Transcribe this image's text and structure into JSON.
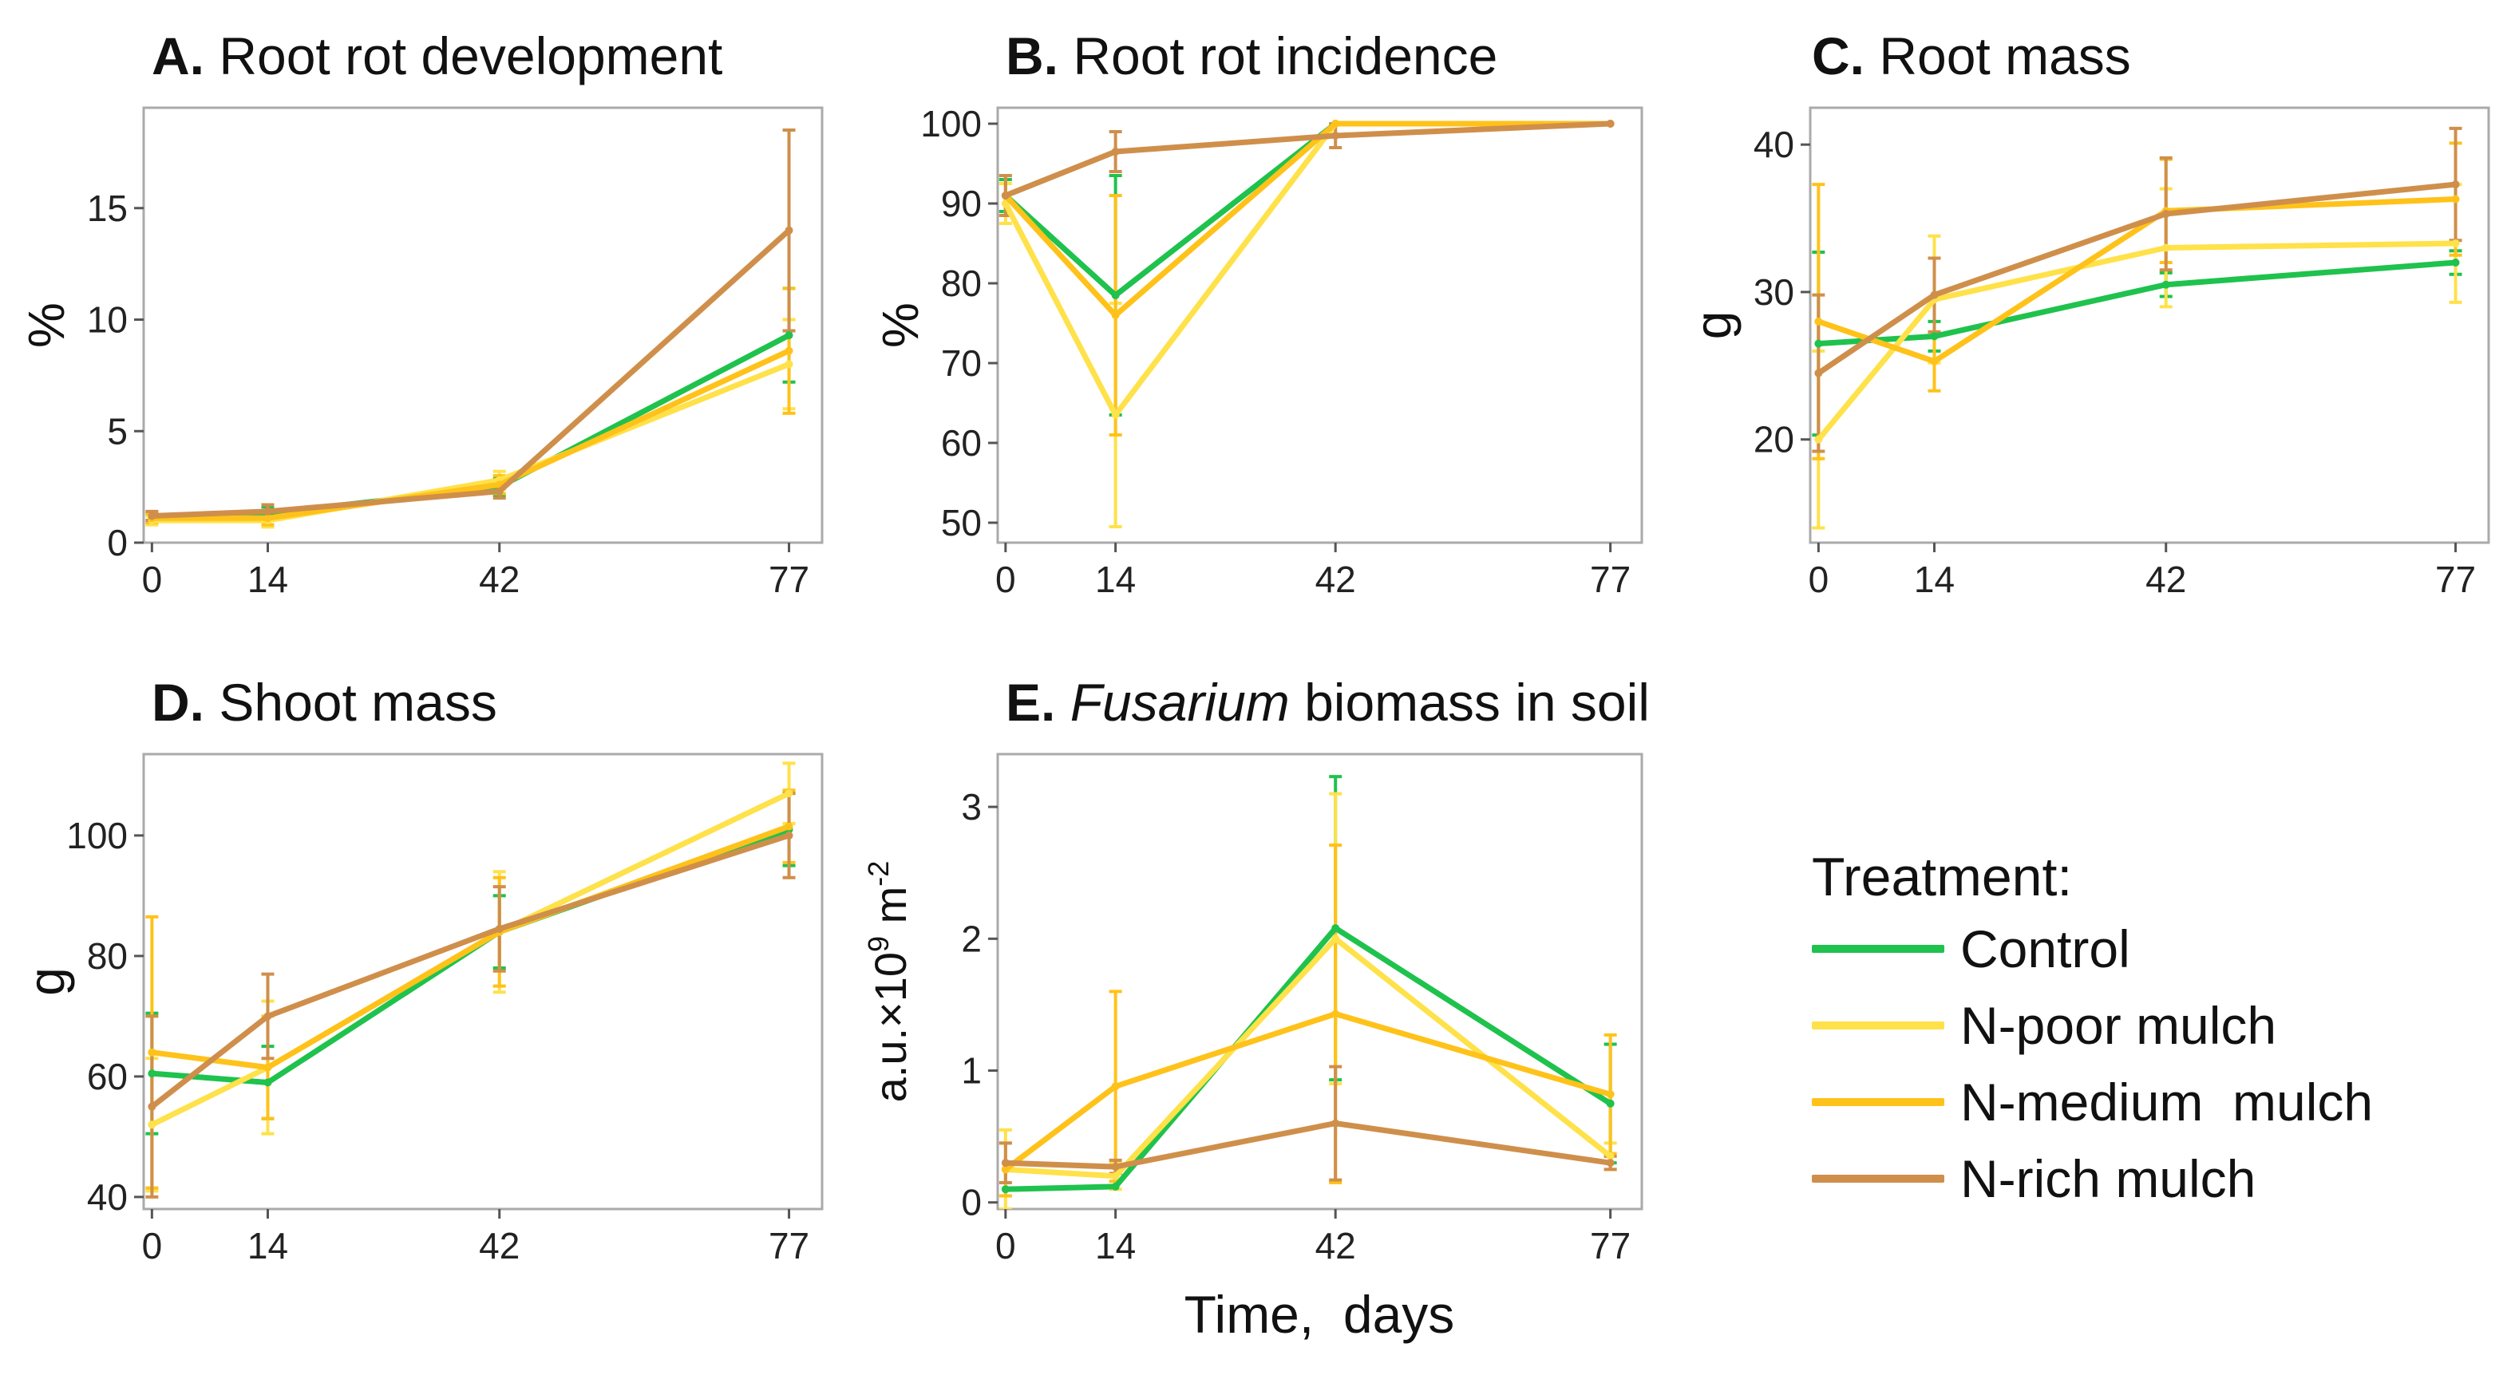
{
  "colors": {
    "control": "#1fc24d",
    "n_poor": "#ffe14a",
    "n_medium": "#ffc21a",
    "n_rich": "#cf8f4b",
    "frame": "#aaaaaa",
    "tick": "#555555"
  },
  "legend": {
    "title": "Treatment:",
    "items": [
      {
        "label": "Control",
        "color": "#1fc24d"
      },
      {
        "label": "N-poor mulch",
        "color": "#ffe14a"
      },
      {
        "label": "N-medium  mulch",
        "color": "#ffc21a"
      },
      {
        "label": "N-rich mulch",
        "color": "#cf8f4b"
      }
    ]
  },
  "shared_xlabel": "Time,  days",
  "chart_data": [
    {
      "id": "A",
      "type": "line",
      "panel_letter": "A.",
      "title": "Root rot development",
      "title_italic": "",
      "title_suffix": "",
      "ylabel": "%",
      "ylabel_sup": "",
      "ylabel_suffix": "",
      "x": [
        0,
        14,
        42,
        77
      ],
      "xticks": [
        "0",
        "14",
        "42",
        "77"
      ],
      "xlim": [
        -1,
        81
      ],
      "ylim": [
        0,
        19.5
      ],
      "yticks": [
        0,
        5,
        10,
        15
      ],
      "ytick_labels": [
        "0",
        "5",
        "10",
        "15"
      ],
      "series": [
        {
          "name": "Control",
          "color": "#1fc24d",
          "values": [
            1.1,
            1.3,
            2.5,
            9.3
          ],
          "err": [
            0.2,
            0.3,
            0.4,
            2.1
          ]
        },
        {
          "name": "N-poor mulch",
          "color": "#ffe14a",
          "values": [
            1.0,
            1.0,
            2.8,
            8.0
          ],
          "err": [
            0.2,
            0.3,
            0.4,
            2.0
          ]
        },
        {
          "name": "N-medium  mulch",
          "color": "#ffc21a",
          "values": [
            1.1,
            1.1,
            2.6,
            8.6
          ],
          "err": [
            0.2,
            0.3,
            0.4,
            2.8
          ]
        },
        {
          "name": "N-rich mulch",
          "color": "#cf8f4b",
          "values": [
            1.2,
            1.4,
            2.3,
            14.0
          ],
          "err": [
            0.2,
            0.3,
            0.3,
            4.5
          ]
        }
      ]
    },
    {
      "id": "B",
      "type": "line",
      "panel_letter": "B.",
      "title": "Root rot incidence",
      "title_italic": "",
      "title_suffix": "",
      "ylabel": "%",
      "ylabel_sup": "",
      "ylabel_suffix": "",
      "x": [
        0,
        14,
        42,
        77
      ],
      "xticks": [
        "0",
        "14",
        "42",
        "77"
      ],
      "xlim": [
        -1,
        81
      ],
      "ylim": [
        47.5,
        102
      ],
      "yticks": [
        50,
        60,
        70,
        80,
        90,
        100
      ],
      "ytick_labels": [
        "50",
        "60",
        "70",
        "80",
        "90",
        "100"
      ],
      "series": [
        {
          "name": "Control",
          "color": "#1fc24d",
          "values": [
            91,
            78.5,
            100,
            100
          ],
          "err": [
            2,
            15,
            0,
            0
          ]
        },
        {
          "name": "N-poor mulch",
          "color": "#ffe14a",
          "values": [
            90,
            63.5,
            100,
            100
          ],
          "err": [
            2.5,
            14,
            0,
            0
          ]
        },
        {
          "name": "N-medium  mulch",
          "color": "#ffc21a",
          "values": [
            91,
            76,
            100,
            100
          ],
          "err": [
            2.5,
            15,
            0,
            0
          ]
        },
        {
          "name": "N-rich mulch",
          "color": "#cf8f4b",
          "values": [
            91,
            96.5,
            98.5,
            100
          ],
          "err": [
            2.5,
            2.5,
            1.5,
            0
          ]
        }
      ]
    },
    {
      "id": "C",
      "type": "line",
      "panel_letter": "C.",
      "title": "Root mass",
      "title_italic": "",
      "title_suffix": "",
      "ylabel": "g",
      "ylabel_sup": "",
      "ylabel_suffix": "",
      "x": [
        0,
        14,
        42,
        77
      ],
      "xticks": [
        "0",
        "14",
        "42",
        "77"
      ],
      "xlim": [
        -1,
        81
      ],
      "ylim": [
        13,
        42.5
      ],
      "yticks": [
        20,
        30,
        40
      ],
      "ytick_labels": [
        "20",
        "30",
        "40"
      ],
      "series": [
        {
          "name": "Control",
          "color": "#1fc24d",
          "values": [
            26.5,
            27,
            30.5,
            32
          ],
          "err": [
            6.2,
            1,
            0.8,
            0.8
          ]
        },
        {
          "name": "N-poor mulch",
          "color": "#ffe14a",
          "values": [
            20,
            29.5,
            33,
            33.3
          ],
          "err": [
            6,
            4.3,
            4,
            4
          ]
        },
        {
          "name": "N-medium  mulch",
          "color": "#ffc21a",
          "values": [
            28,
            25.3,
            35.5,
            36.3
          ],
          "err": [
            9.3,
            2,
            3.5,
            3.8
          ]
        },
        {
          "name": "N-rich mulch",
          "color": "#cf8f4b",
          "values": [
            24.5,
            29.8,
            35.3,
            37.3
          ],
          "err": [
            5.3,
            2.5,
            3.8,
            3.8
          ]
        }
      ]
    },
    {
      "id": "D",
      "type": "line",
      "panel_letter": "D.",
      "title": "Shoot mass",
      "title_italic": "",
      "title_suffix": "",
      "ylabel": "g",
      "ylabel_sup": "",
      "ylabel_suffix": "",
      "x": [
        0,
        14,
        42,
        77
      ],
      "xticks": [
        "0",
        "14",
        "42",
        "77"
      ],
      "xlim": [
        -1,
        81
      ],
      "ylim": [
        38,
        113.5
      ],
      "yticks": [
        40,
        60,
        80,
        100
      ],
      "ytick_labels": [
        "40",
        "60",
        "80",
        "100"
      ],
      "series": [
        {
          "name": "Control",
          "color": "#1fc24d",
          "values": [
            60.5,
            59,
            84,
            101
          ],
          "err": [
            10,
            6,
            6,
            6
          ]
        },
        {
          "name": "N-poor mulch",
          "color": "#ffe14a",
          "values": [
            52,
            61.5,
            84,
            107
          ],
          "err": [
            11,
            11,
            10,
            5
          ]
        },
        {
          "name": "N-medium  mulch",
          "color": "#ffc21a",
          "values": [
            64,
            61.5,
            84,
            101.5
          ],
          "err": [
            22.5,
            8.5,
            9,
            6
          ]
        },
        {
          "name": "N-rich mulch",
          "color": "#cf8f4b",
          "values": [
            55,
            70,
            84.5,
            100
          ],
          "err": [
            15,
            7,
            7,
            7
          ]
        }
      ]
    },
    {
      "id": "E",
      "type": "line",
      "panel_letter": "E.",
      "title": "",
      "title_italic": "Fusarium",
      "title_suffix": " biomass in soil",
      "ylabel": "a.u.×10",
      "ylabel_sup": "9",
      "ylabel_suffix": " m",
      "ylabel_sup2": "-2",
      "x": [
        0,
        14,
        42,
        77
      ],
      "xticks": [
        "0",
        "14",
        "42",
        "77"
      ],
      "xlim": [
        -1,
        81
      ],
      "ylim": [
        -0.05,
        3.4
      ],
      "yticks": [
        0,
        1,
        2,
        3
      ],
      "ytick_labels": [
        "0",
        "1",
        "2",
        "3"
      ],
      "series": [
        {
          "name": "Control",
          "color": "#1fc24d",
          "values": [
            0.1,
            0.12,
            2.08,
            0.75
          ],
          "err": [
            0,
            0,
            1.15,
            0.45
          ]
        },
        {
          "name": "N-poor mulch",
          "color": "#ffe14a",
          "values": [
            0.25,
            0.2,
            2.0,
            0.35
          ],
          "err": [
            0.3,
            0.1,
            1.1,
            0.1
          ]
        },
        {
          "name": "N-medium  mulch",
          "color": "#ffc21a",
          "values": [
            0.25,
            0.88,
            1.43,
            0.82
          ],
          "err": [
            0.2,
            0.72,
            1.28,
            0.45
          ]
        },
        {
          "name": "N-rich mulch",
          "color": "#cf8f4b",
          "values": [
            0.3,
            0.27,
            0.6,
            0.3
          ],
          "err": [
            0.15,
            0.05,
            0.43,
            0.05
          ]
        }
      ]
    }
  ]
}
